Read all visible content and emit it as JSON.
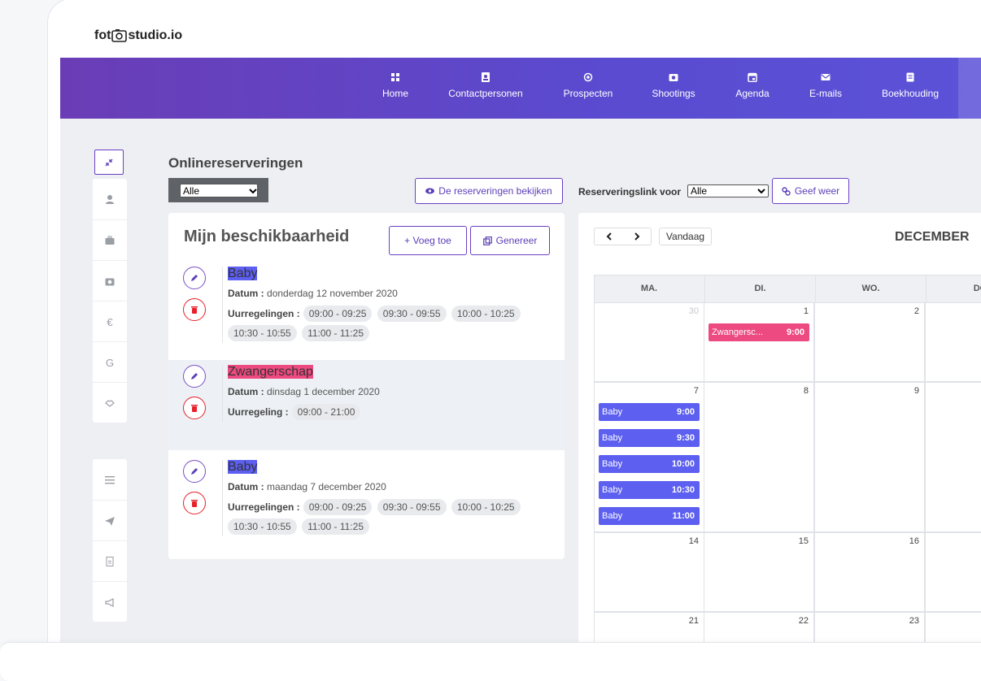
{
  "logo": {
    "left": "fot",
    "right": "studio.io"
  },
  "nav": [
    "Home",
    "Contactpersonen",
    "Prospecten",
    "Shootings",
    "Agenda",
    "E-mails",
    "Boekhouding"
  ],
  "sidebar": {
    "glyphs": [
      "€",
      "G"
    ]
  },
  "page_title": "Onlinereserveringen",
  "filter_select": "Alle",
  "view_button": "De reserveringen bekijken",
  "link_label": "Reserveringslink voor",
  "link_select": "Alle",
  "show_button": "Geef weer",
  "availability": {
    "title": "Mijn beschikbaarheid",
    "add_button": "+ Voeg toe",
    "generate_button": "Genereer",
    "items": [
      {
        "badge": "Baby",
        "color": "#5c5ff0",
        "date_label": "Datum :",
        "date": "donderdag 12 november 2020",
        "slots_label": "Uurregelingen :",
        "slots": [
          "09:00 - 09:25",
          "09:30 - 09:55",
          "10:00 - 10:25",
          "10:30 - 10:55",
          "11:00 - 11:25"
        ]
      },
      {
        "badge": "Zwangerschap",
        "color": "#ec4a80",
        "date_label": "Datum :",
        "date": "dinsdag 1 december 2020",
        "slots_label": "Uurregeling :",
        "slots": [
          "09:00 - 21:00"
        ]
      },
      {
        "badge": "Baby",
        "color": "#5c5ff0",
        "date_label": "Datum :",
        "date": "maandag 7 december 2020",
        "slots_label": "Uurregelingen :",
        "slots": [
          "09:00 - 09:25",
          "09:30 - 09:55",
          "10:00 - 10:25",
          "10:30 - 10:55",
          "11:00 - 11:25"
        ]
      }
    ]
  },
  "calendar": {
    "today_button": "Vandaag",
    "month": "DECEMBER",
    "weekdays": [
      "MA.",
      "DI.",
      "WO.",
      "DO."
    ],
    "weeks": [
      {
        "days": [
          {
            "day": 30,
            "muted": true,
            "events": []
          },
          {
            "day": 1,
            "events": [
              {
                "title": "Zwangersc...",
                "time": "9:00",
                "color": "#ec4a80"
              }
            ]
          },
          {
            "day": 2,
            "events": []
          }
        ]
      },
      {
        "days": [
          {
            "day": 7,
            "events": [
              {
                "title": "Baby",
                "time": "9:00",
                "color": "#5c5ff0"
              },
              {
                "title": "Baby",
                "time": "9:30",
                "color": "#5c5ff0"
              },
              {
                "title": "Baby",
                "time": "10:00",
                "color": "#5c5ff0"
              },
              {
                "title": "Baby",
                "time": "10:30",
                "color": "#5c5ff0"
              },
              {
                "title": "Baby",
                "time": "11:00",
                "color": "#5c5ff0"
              }
            ]
          },
          {
            "day": 8,
            "events": []
          },
          {
            "day": 9,
            "events": []
          }
        ]
      },
      {
        "days": [
          {
            "day": 14,
            "events": []
          },
          {
            "day": 15,
            "events": []
          },
          {
            "day": 16,
            "events": []
          }
        ]
      },
      {
        "days": [
          {
            "day": 21,
            "events": []
          },
          {
            "day": 22,
            "events": []
          },
          {
            "day": 23,
            "events": []
          }
        ]
      }
    ]
  }
}
